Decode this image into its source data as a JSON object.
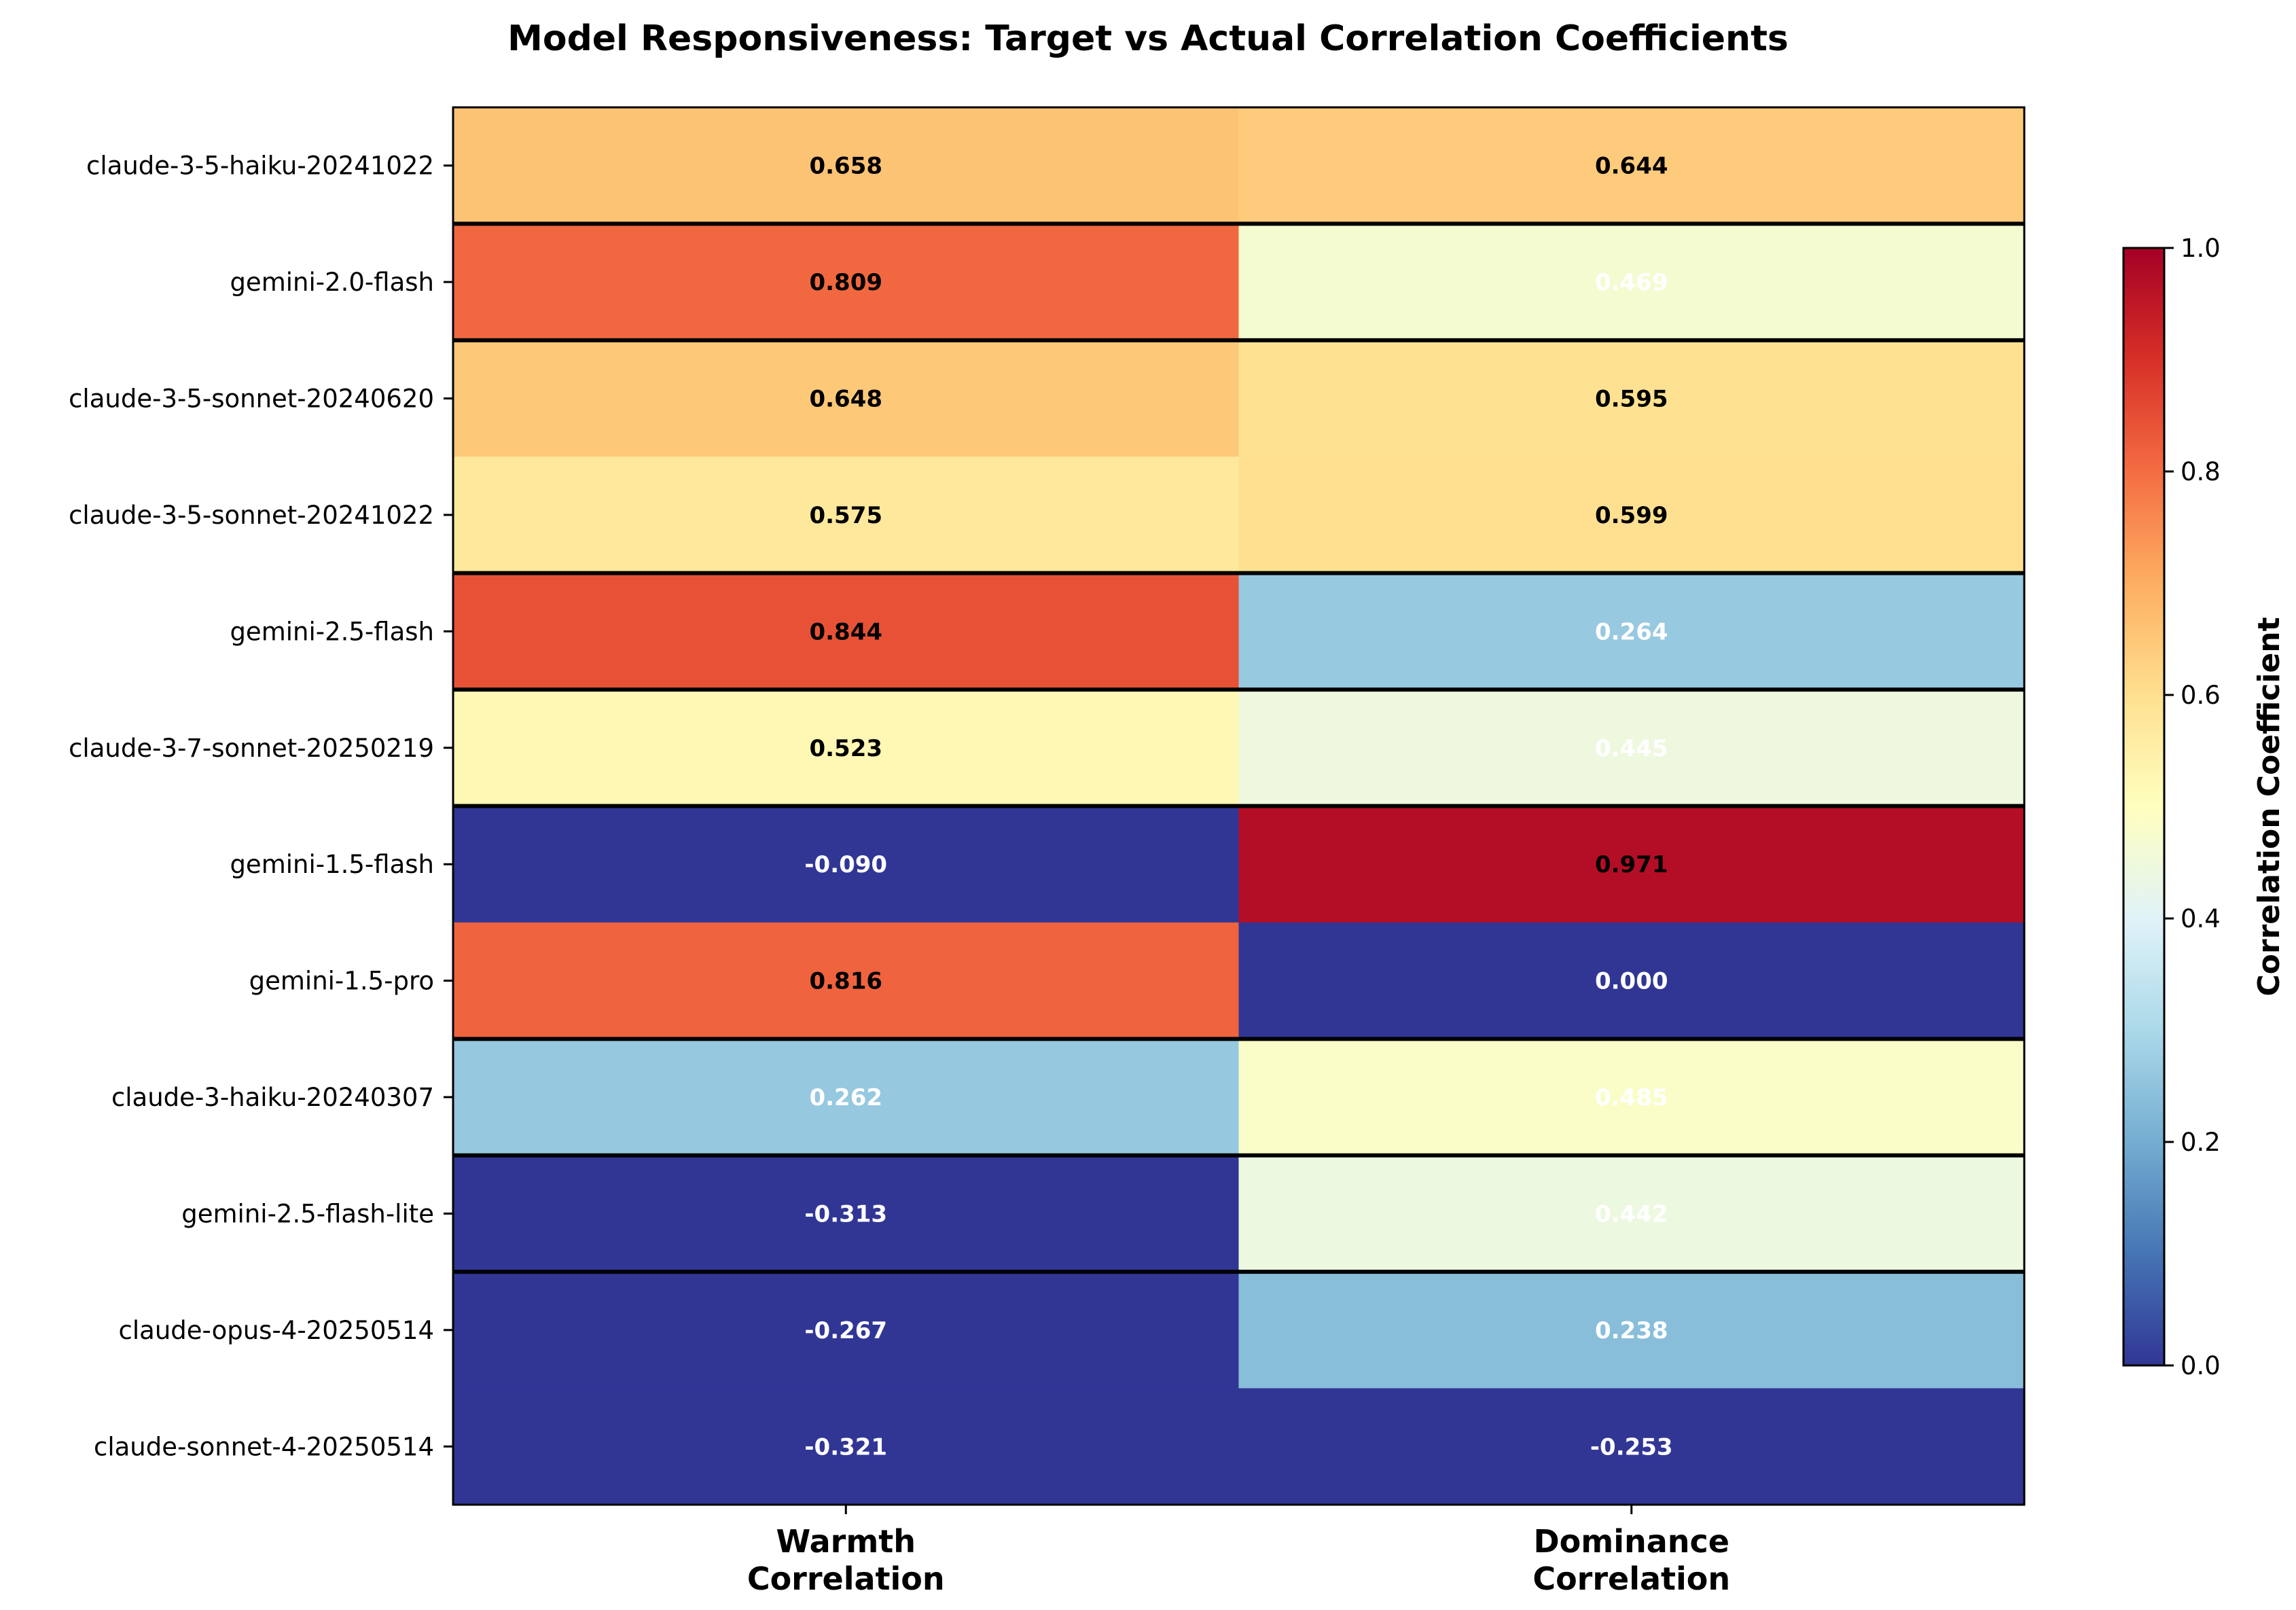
{
  "chart_data": {
    "type": "heatmap",
    "title": "Model Responsiveness: Target vs Actual Correlation Coefficients",
    "columns": [
      "Warmth\nCorrelation",
      "Dominance\nCorrelation"
    ],
    "rows": [
      "claude-3-5-haiku-20241022",
      "gemini-2.0-flash",
      "claude-3-5-sonnet-20240620",
      "claude-3-5-sonnet-20241022",
      "gemini-2.5-flash",
      "claude-3-7-sonnet-20250219",
      "gemini-1.5-flash",
      "gemini-1.5-pro",
      "claude-3-haiku-20240307",
      "gemini-2.5-flash-lite",
      "claude-opus-4-20250514",
      "claude-sonnet-4-20250514"
    ],
    "values": [
      [
        0.658,
        0.644
      ],
      [
        0.809,
        0.469
      ],
      [
        0.648,
        0.595
      ],
      [
        0.575,
        0.599
      ],
      [
        0.844,
        0.264
      ],
      [
        0.523,
        0.445
      ],
      [
        -0.09,
        0.971
      ],
      [
        0.816,
        0.0
      ],
      [
        0.262,
        0.485
      ],
      [
        -0.313,
        0.442
      ],
      [
        -0.267,
        0.238
      ],
      [
        -0.321,
        -0.253
      ]
    ],
    "value_labels": [
      [
        "0.658",
        "0.644"
      ],
      [
        "0.809",
        "0.469"
      ],
      [
        "0.648",
        "0.595"
      ],
      [
        "0.575",
        "0.599"
      ],
      [
        "0.844",
        "0.264"
      ],
      [
        "0.523",
        "0.445"
      ],
      [
        "-0.090",
        "0.971"
      ],
      [
        "0.816",
        "0.000"
      ],
      [
        "0.262",
        "0.485"
      ],
      [
        "-0.313",
        "0.442"
      ],
      [
        "-0.267",
        "0.238"
      ],
      [
        "-0.321",
        "-0.253"
      ]
    ],
    "separator_after_rows": [
      0,
      1,
      3,
      4,
      5,
      7,
      8,
      9
    ],
    "colorbar": {
      "label": "Correlation Coefficient",
      "range": [
        0,
        1
      ],
      "ticks": [
        "0.0",
        "0.2",
        "0.4",
        "0.6",
        "0.8",
        "1.0"
      ],
      "colormap": "RdYlBu_r"
    },
    "colors": {
      "colormap_stops": [
        "#313695",
        "#4575b4",
        "#74add1",
        "#abd9e9",
        "#e0f3f8",
        "#ffffbf",
        "#fee090",
        "#fdae61",
        "#f46d43",
        "#d73027",
        "#a50026"
      ],
      "separator": "#000000",
      "text_dark": "#000000",
      "text_light": "#ffffff"
    }
  }
}
